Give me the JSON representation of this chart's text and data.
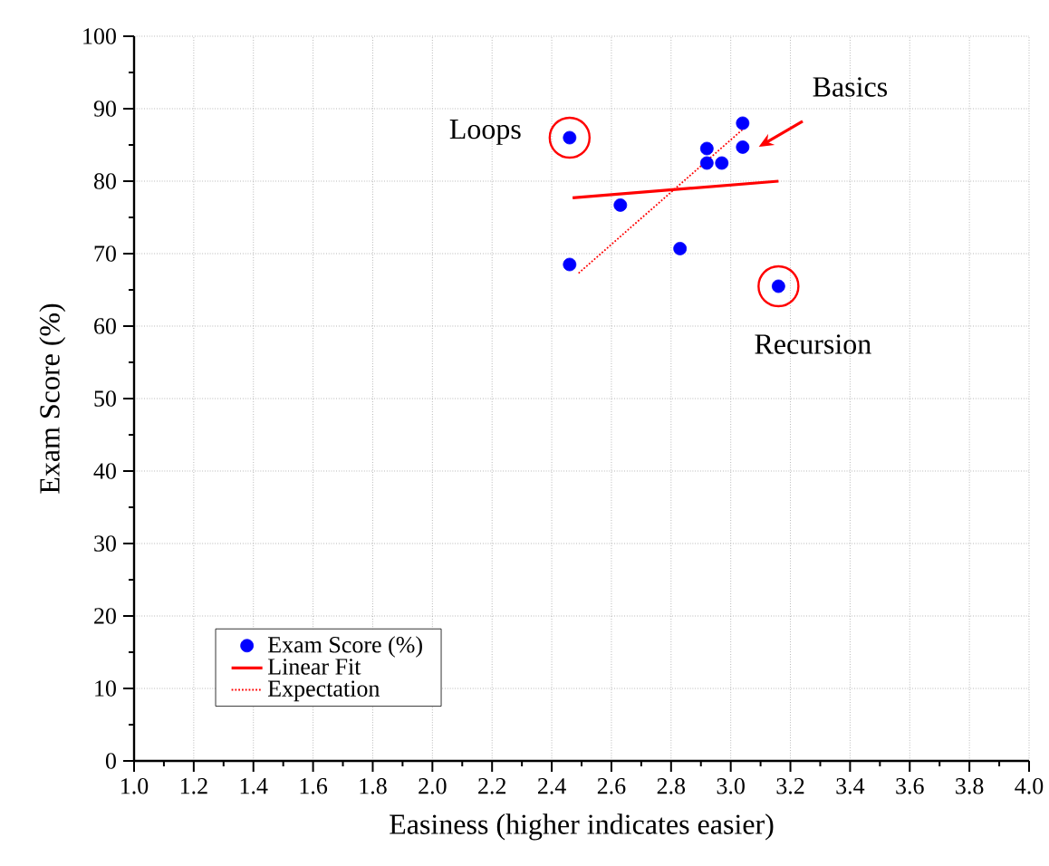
{
  "chart_data": {
    "type": "scatter",
    "xlabel": "Easiness (higher indicates easier)",
    "ylabel": "Exam Score (%)",
    "xlim": [
      1.0,
      4.0
    ],
    "ylim": [
      0,
      100
    ],
    "xticks": [
      {
        "value": 1.0,
        "label": "1.0"
      },
      {
        "value": 1.2,
        "label": "1.2"
      },
      {
        "value": 1.4,
        "label": "1.4"
      },
      {
        "value": 1.6,
        "label": "1.6"
      },
      {
        "value": 1.8,
        "label": "1.8"
      },
      {
        "value": 2.0,
        "label": "2.0"
      },
      {
        "value": 2.2,
        "label": "2.2"
      },
      {
        "value": 2.4,
        "label": "2.4"
      },
      {
        "value": 2.6,
        "label": "2.6"
      },
      {
        "value": 2.8,
        "label": "2.8"
      },
      {
        "value": 3.0,
        "label": "3.0"
      },
      {
        "value": 3.2,
        "label": "3.2"
      },
      {
        "value": 3.4,
        "label": "3.4"
      },
      {
        "value": 3.6,
        "label": "3.6"
      },
      {
        "value": 3.8,
        "label": "3.8"
      },
      {
        "value": 4.0,
        "label": "4.0"
      }
    ],
    "yticks": [
      0,
      10,
      20,
      30,
      40,
      50,
      60,
      70,
      80,
      90,
      100
    ],
    "grid": true,
    "legend": "bottom left",
    "series": [
      {
        "name": "Exam Score (%)",
        "color": "#0000ff",
        "marker": "circle",
        "x": [
          2.46,
          2.46,
          2.63,
          2.83,
          2.92,
          2.92,
          2.97,
          3.04,
          3.04,
          3.16
        ],
        "values": [
          86,
          68.5,
          76.7,
          70.7,
          84.5,
          82.5,
          82.5,
          88,
          84.7,
          65.5
        ]
      },
      {
        "name": "Linear Fit",
        "type": "line",
        "color": "#ff0000",
        "line_style": "solid",
        "marker": "none",
        "x": [
          2.47,
          3.16
        ],
        "values": [
          77.7,
          80
        ]
      },
      {
        "name": "Expectation",
        "type": "line",
        "color": "#ff0000",
        "line_style": "dotted",
        "marker": "none",
        "x": [
          2.49,
          3.05
        ],
        "values": [
          67.3,
          87.5
        ]
      }
    ],
    "annotations": [
      {
        "text": "Loops",
        "x": 2.46,
        "y": 86
      },
      "Basics",
      {
        "text": "Recursion",
        "x": 3.16,
        "y": 65.5
      }
    ]
  }
}
